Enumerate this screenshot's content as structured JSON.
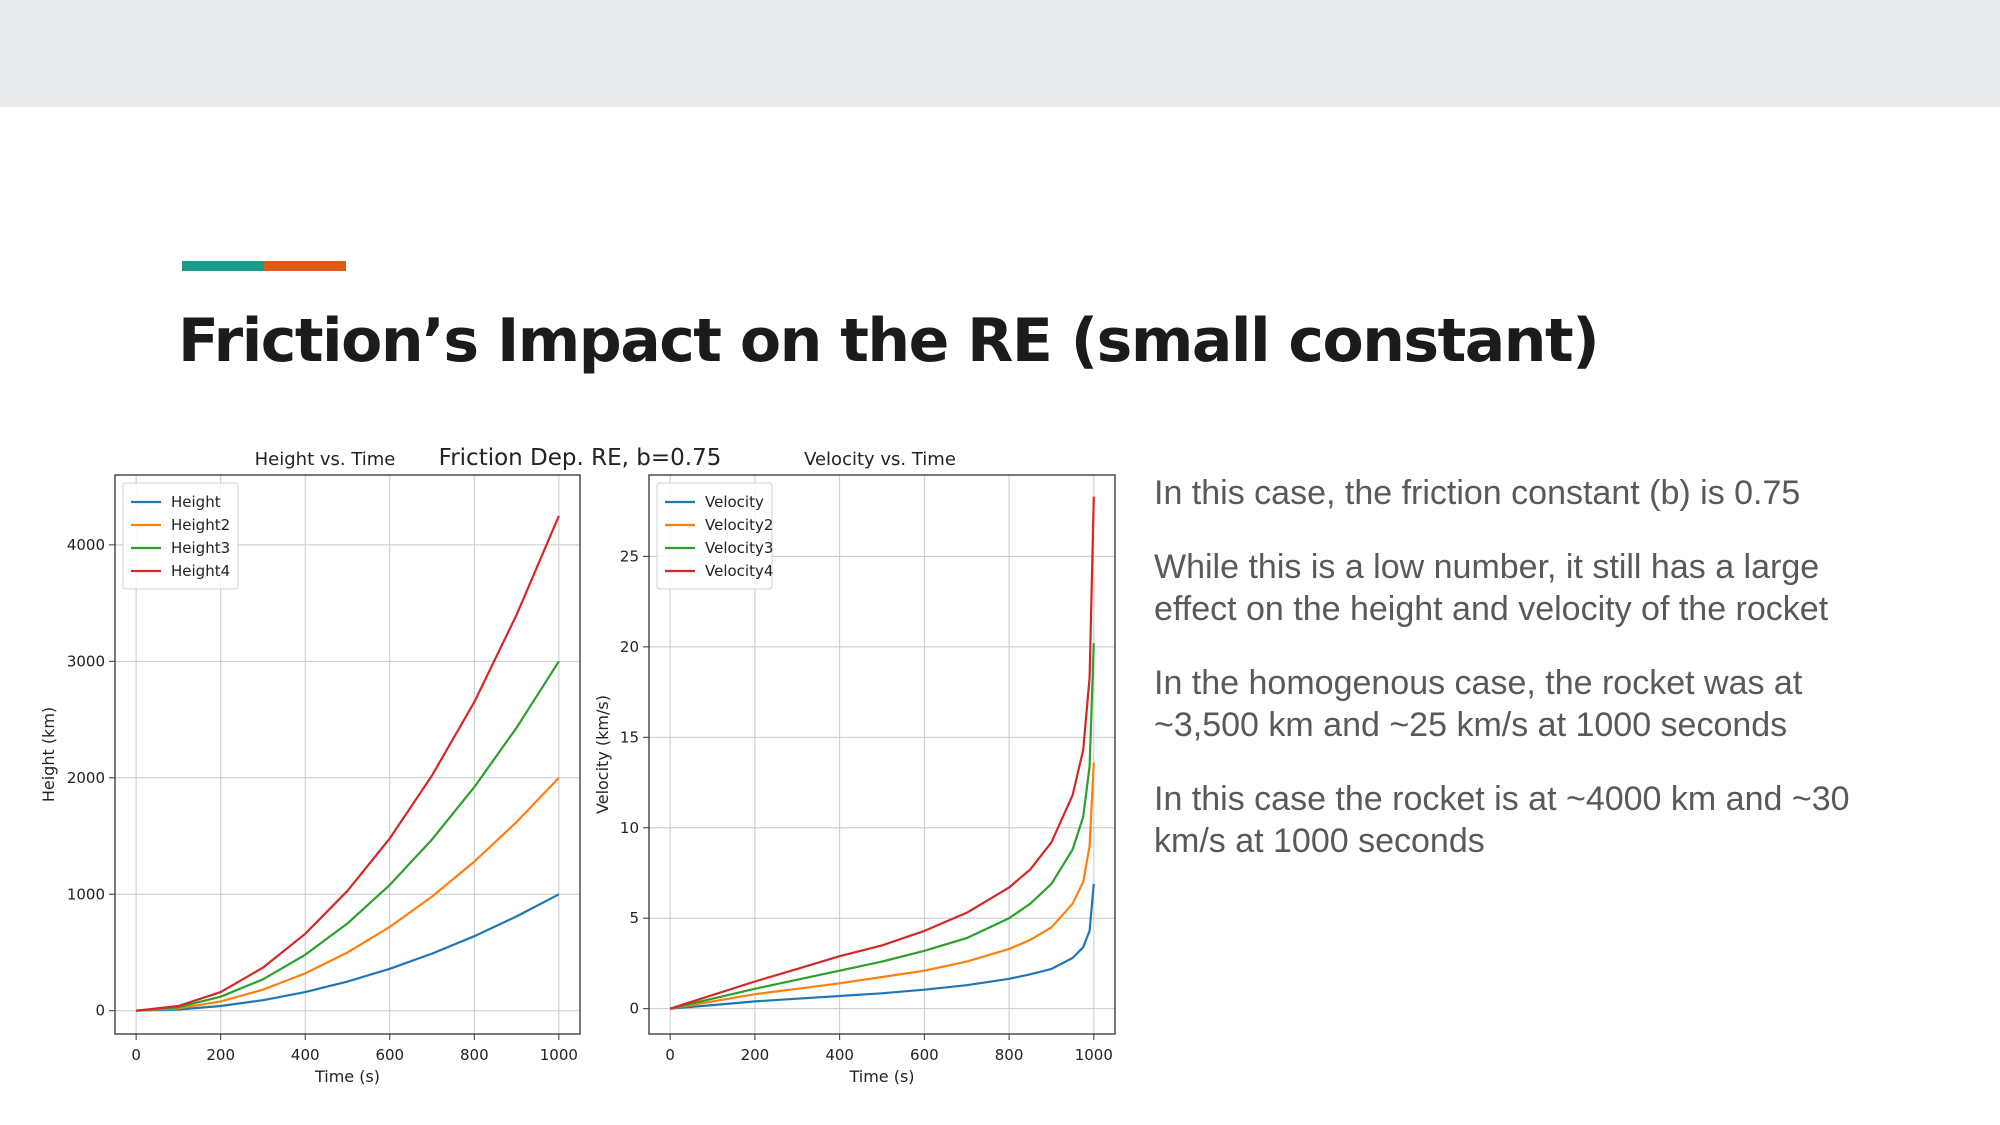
{
  "slide": {
    "title": "Friction’s Impact on the RE (small constant)",
    "accent_colors": [
      "#1a9a8b",
      "#e05a12"
    ],
    "band_color": "#e8ebed"
  },
  "figure": {
    "suptitle": "Friction Dep. RE, b=0.75"
  },
  "bullets": [
    "In this case, the friction constant (b) is 0.75",
    "While this is a low number, it still has a large effect on the height and velocity of the rocket",
    "In the homogenous case, the rocket was at ~3,500 km and ~25 km/s at 1000 seconds",
    "In this case the rocket is at ~4000 km and ~30 km/s at 1000 seconds"
  ],
  "chart_data": [
    {
      "type": "line",
      "title": "Height vs. Time",
      "xlabel": "Time (s)",
      "ylabel": "Height (km)",
      "xlim": [
        -50,
        1050
      ],
      "ylim": [
        -200,
        4600
      ],
      "xticks": [
        0,
        200,
        400,
        600,
        800,
        1000
      ],
      "yticks": [
        0,
        1000,
        2000,
        3000,
        4000
      ],
      "grid": true,
      "legend": "top-left",
      "x": [
        0,
        100,
        200,
        300,
        400,
        500,
        600,
        700,
        800,
        900,
        1000
      ],
      "series": [
        {
          "name": "Height",
          "color": "#1f77b4",
          "values": [
            0,
            10,
            40,
            90,
            160,
            250,
            360,
            490,
            640,
            810,
            1000
          ]
        },
        {
          "name": "Height2",
          "color": "#ff7f0e",
          "values": [
            0,
            20,
            80,
            180,
            320,
            500,
            720,
            980,
            1280,
            1620,
            2000
          ]
        },
        {
          "name": "Height3",
          "color": "#2ca02c",
          "values": [
            0,
            30,
            120,
            270,
            480,
            750,
            1080,
            1470,
            1920,
            2430,
            3000
          ]
        },
        {
          "name": "Height4",
          "color": "#d62728",
          "values": [
            0,
            40,
            160,
            370,
            660,
            1030,
            1480,
            2020,
            2650,
            3400,
            4250
          ]
        }
      ]
    },
    {
      "type": "line",
      "title": "Velocity vs. Time",
      "xlabel": "Time (s)",
      "ylabel": "Velocity (km/s)",
      "xlim": [
        -50,
        1050
      ],
      "ylim": [
        -1.4,
        29.5
      ],
      "xticks": [
        0,
        200,
        400,
        600,
        800,
        1000
      ],
      "yticks": [
        0,
        5,
        10,
        15,
        20,
        25
      ],
      "grid": true,
      "legend": "top-left",
      "x": [
        0,
        100,
        200,
        300,
        400,
        500,
        600,
        700,
        800,
        850,
        900,
        950,
        975,
        990,
        1000
      ],
      "series": [
        {
          "name": "Velocity",
          "color": "#1f77b4",
          "values": [
            0,
            0.2,
            0.4,
            0.55,
            0.7,
            0.85,
            1.05,
            1.3,
            1.65,
            1.9,
            2.2,
            2.8,
            3.4,
            4.3,
            6.9
          ]
        },
        {
          "name": "Velocity2",
          "color": "#ff7f0e",
          "values": [
            0,
            0.4,
            0.8,
            1.1,
            1.4,
            1.75,
            2.1,
            2.6,
            3.3,
            3.8,
            4.5,
            5.8,
            7.0,
            9.0,
            13.6
          ]
        },
        {
          "name": "Velocity3",
          "color": "#2ca02c",
          "values": [
            0,
            0.55,
            1.1,
            1.6,
            2.1,
            2.6,
            3.2,
            3.9,
            5.0,
            5.8,
            6.9,
            8.8,
            10.6,
            13.4,
            20.2
          ]
        },
        {
          "name": "Velocity4",
          "color": "#d62728",
          "values": [
            0,
            0.75,
            1.5,
            2.2,
            2.9,
            3.5,
            4.3,
            5.3,
            6.7,
            7.7,
            9.2,
            11.8,
            14.3,
            18.3,
            28.3
          ]
        }
      ]
    }
  ]
}
